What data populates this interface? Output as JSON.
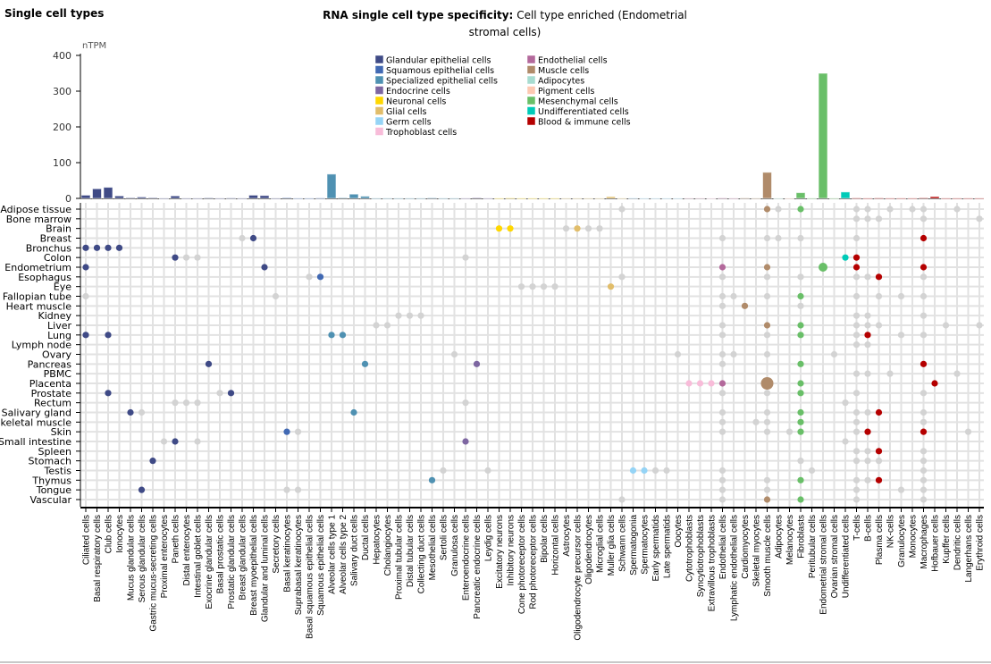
{
  "header": {
    "section_title": "Single cell types",
    "chart_title_bold": "RNA single cell type specificity:",
    "chart_title_rest": "Cell type enriched (Endometrial stromal cells)"
  },
  "chart_data": {
    "type": "bar",
    "ylabel": "nTPM",
    "ylim": [
      0,
      400
    ],
    "yticks": [
      0,
      100,
      200,
      300,
      400
    ],
    "legend_position": "right",
    "legend": [
      {
        "name": "Glandular epithelial cells",
        "color": "#3f4a86"
      },
      {
        "name": "Squamous epithelial cells",
        "color": "#4169b3"
      },
      {
        "name": "Specialized epithelial cells",
        "color": "#4f91b2"
      },
      {
        "name": "Endocrine cells",
        "color": "#7d66a1"
      },
      {
        "name": "Neuronal cells",
        "color": "#ffd700"
      },
      {
        "name": "Glial cells",
        "color": "#e1bd6a"
      },
      {
        "name": "Germ cells",
        "color": "#95d4f6"
      },
      {
        "name": "Trophoblast cells",
        "color": "#f8bcd9"
      },
      {
        "name": "Endothelial cells",
        "color": "#b3699b"
      },
      {
        "name": "Muscle cells",
        "color": "#b08b6a"
      },
      {
        "name": "Adipocytes",
        "color": "#a7dcd0"
      },
      {
        "name": "Pigment cells",
        "color": "#fdc9b2"
      },
      {
        "name": "Mesenchymal cells",
        "color": "#69bf68"
      },
      {
        "name": "Undifferentiated cells",
        "color": "#00cbb8"
      },
      {
        "name": "Blood & immune cells",
        "color": "#b50000"
      }
    ],
    "categories": [
      "Ciliated cells",
      "Basal respiratory cells",
      "Club cells",
      "Ionocytes",
      "Mucus glandular cells",
      "Serous glandular cells",
      "Gastric mucus-secreting cells",
      "Proximal enterocytes",
      "Paneth cells",
      "Distal enterocytes",
      "Intestinal goblet cells",
      "Exocrine glandular cells",
      "Basal prostatic cells",
      "Prostatic glandular cells",
      "Breast glandular cells",
      "Breast myoepithelial cells",
      "Glandular and luminal cells",
      "Secretory cells",
      "Basal keratinocytes",
      "Suprabasal keratinocytes",
      "Basal squamous epithelial cells",
      "Squamous epithelial cells",
      "Alveolar cells type 1",
      "Alveolar cells type 2",
      "Salivary duct cells",
      "Ductal cells",
      "Hepatocytes",
      "Cholangiocytes",
      "Proximal tubular cells",
      "Distal tubular cells",
      "Collecting duct cells",
      "Mesothelial cells",
      "Sertoli cells",
      "Granulosa cells",
      "Enteroendocrine cells",
      "Pancreatic endocrine cells",
      "Leydig cells",
      "Excitatory neurons",
      "Inhibitory neurons",
      "Cone photoreceptor cells",
      "Rod photoreceptor cells",
      "Bipolar cells",
      "Horizontal cells",
      "Astrocytes",
      "Oligodendrocyte precursor cells",
      "Oligodendrocytes",
      "Microglial cells",
      "Muller glia cells",
      "Schwann cells",
      "Spermatogonia",
      "Spermatocytes",
      "Early spermatids",
      "Late spermatids",
      "Oocytes",
      "Cytotrophoblasts",
      "Syncytiotrophoblasts",
      "Extravillous trophoblasts",
      "Endothelial cells",
      "Lymphatic endothelial cells",
      "Cardiomyocytes",
      "Skeletal myocytes",
      "Smooth muscle cells",
      "Adipocytes",
      "Melanocytes",
      "Fibroblasts",
      "Peritubular cells",
      "Endometrial stromal cells",
      "Ovarian stromal cells",
      "Undifferentiated cells",
      "T-cells",
      "B-cells",
      "Plasma cells",
      "NK-cells",
      "Granulocytes",
      "Monocytes",
      "Macrophages",
      "Hofbauer cells",
      "Kupffer cells",
      "Dendritic cells",
      "Langerhans cells",
      "Erythroid cells"
    ],
    "category_group": [
      0,
      0,
      0,
      0,
      0,
      0,
      0,
      0,
      0,
      0,
      0,
      0,
      0,
      0,
      0,
      0,
      0,
      0,
      1,
      1,
      1,
      1,
      2,
      2,
      2,
      2,
      2,
      2,
      2,
      2,
      2,
      2,
      2,
      2,
      3,
      3,
      3,
      4,
      4,
      4,
      4,
      4,
      4,
      5,
      5,
      5,
      5,
      5,
      5,
      6,
      6,
      6,
      6,
      6,
      7,
      7,
      7,
      8,
      8,
      9,
      9,
      9,
      10,
      11,
      12,
      12,
      12,
      12,
      13,
      14,
      14,
      14,
      14,
      14,
      14,
      14,
      14,
      14,
      14,
      14,
      14
    ],
    "values": [
      9,
      27,
      31,
      7,
      2,
      4,
      2,
      0.5,
      7,
      0.5,
      0.5,
      1.5,
      0.5,
      1,
      0.5,
      9,
      8,
      0.5,
      2,
      0.5,
      0.5,
      1,
      68,
      2,
      12,
      6,
      0.5,
      0.5,
      0.5,
      0.5,
      0.5,
      1.5,
      0.5,
      0.5,
      0.5,
      2,
      0.5,
      0.5,
      1,
      0.5,
      0.5,
      0.5,
      0.5,
      0.5,
      0.5,
      0.5,
      0.5,
      5,
      0.5,
      1,
      0.5,
      0.5,
      0.5,
      0.5,
      1,
      1,
      0.5,
      1,
      0.5,
      1,
      0.5,
      73,
      0.5,
      0.5,
      16,
      0.5,
      350,
      0.5,
      18,
      1,
      0.5,
      1,
      0.5,
      0.5,
      0.5,
      1.5,
      5,
      0.5,
      0.5,
      0.5,
      0.5
    ],
    "dot_matrix": {
      "tissues": [
        {
          "name": "Adipose tissue",
          "enriched": [
            62,
            65
          ],
          "other": [
            49,
            63,
            70,
            71,
            73,
            75,
            76,
            79
          ]
        },
        {
          "name": "Bone marrow",
          "enriched": [],
          "other": [
            70,
            71,
            72,
            76,
            81
          ]
        },
        {
          "name": "Brain",
          "enriched": [
            38,
            39,
            45
          ],
          "other": [
            44,
            46,
            47
          ]
        },
        {
          "name": "Breast",
          "enriched": [
            16,
            76
          ],
          "other": [
            15,
            58,
            62,
            63,
            65,
            70
          ]
        },
        {
          "name": "Bronchus",
          "enriched": [
            1,
            2,
            3,
            4
          ],
          "other": []
        },
        {
          "name": "Colon",
          "enriched": [
            9,
            69,
            70
          ],
          "other": [
            10,
            11,
            35
          ]
        },
        {
          "name": "Endometrium",
          "enriched": [
            1,
            17,
            58,
            62,
            67,
            70,
            76
          ],
          "other": [],
          "larger": [
            67
          ]
        },
        {
          "name": "Esophagus",
          "enriched": [
            22,
            72
          ],
          "other": [
            21,
            49,
            58,
            62,
            65,
            70,
            71,
            76
          ]
        },
        {
          "name": "Eye",
          "enriched": [
            48
          ],
          "other": [
            40,
            41,
            42,
            43
          ]
        },
        {
          "name": "Fallopian tube",
          "enriched": [
            65
          ],
          "other": [
            1,
            18,
            58,
            59,
            62,
            70,
            72,
            74,
            76
          ]
        },
        {
          "name": "Heart muscle",
          "enriched": [
            60
          ],
          "other": [
            58,
            65
          ]
        },
        {
          "name": "Kidney",
          "enriched": [],
          "other": [
            29,
            30,
            31,
            70,
            71,
            76
          ]
        },
        {
          "name": "Liver",
          "enriched": [
            62,
            65
          ],
          "other": [
            27,
            28,
            58,
            70,
            71,
            72,
            78,
            81
          ]
        },
        {
          "name": "Lung",
          "enriched": [
            1,
            3,
            23,
            24,
            65,
            71
          ],
          "other": [
            58,
            62,
            70,
            74,
            76
          ]
        },
        {
          "name": "Lymph node",
          "enriched": [],
          "other": [
            70,
            71
          ]
        },
        {
          "name": "Ovary",
          "enriched": [],
          "other": [
            34,
            54,
            58,
            59,
            62,
            68
          ]
        },
        {
          "name": "Pancreas",
          "enriched": [
            12,
            26,
            36,
            65,
            76
          ],
          "other": [
            58
          ]
        },
        {
          "name": "PBMC",
          "enriched": [],
          "other": [
            70,
            71,
            73,
            79
          ]
        },
        {
          "name": "Placenta",
          "enriched": [
            55,
            56,
            57,
            58,
            62,
            65,
            77
          ],
          "other": [],
          "largest": [
            62
          ]
        },
        {
          "name": "Prostate",
          "enriched": [
            3,
            14,
            65
          ],
          "other": [
            13,
            58,
            62,
            70,
            76
          ]
        },
        {
          "name": "Rectum",
          "enriched": [],
          "other": [
            9,
            10,
            11,
            35,
            69
          ]
        },
        {
          "name": "Salivary gland",
          "enriched": [
            5,
            25,
            65,
            72
          ],
          "other": [
            6,
            58,
            62,
            70,
            71,
            76
          ]
        },
        {
          "name": "Skeletal muscle",
          "enriched": [
            65
          ],
          "other": [
            58,
            61,
            62,
            70,
            76
          ]
        },
        {
          "name": "Skin",
          "enriched": [
            19,
            65,
            71,
            76
          ],
          "other": [
            20,
            58,
            62,
            64,
            70,
            80
          ]
        },
        {
          "name": "Small intestine",
          "enriched": [
            9,
            35
          ],
          "other": [
            8,
            11,
            69
          ]
        },
        {
          "name": "Spleen",
          "enriched": [
            72
          ],
          "other": [
            70,
            71,
            76
          ]
        },
        {
          "name": "Stomach",
          "enriched": [
            7
          ],
          "other": [
            65,
            70,
            71,
            72,
            76
          ]
        },
        {
          "name": "Testis",
          "enriched": [
            50,
            51
          ],
          "other": [
            33,
            37,
            52,
            53,
            58,
            66,
            76
          ]
        },
        {
          "name": "Thymus",
          "enriched": [
            32,
            65,
            72
          ],
          "other": [
            58,
            62,
            70,
            71,
            76
          ]
        },
        {
          "name": "Tongue",
          "enriched": [
            6
          ],
          "other": [
            19,
            20,
            58,
            62,
            70,
            74,
            76
          ]
        },
        {
          "name": "Vascular",
          "enriched": [
            62,
            65
          ],
          "other": [
            49,
            58,
            70,
            76
          ]
        }
      ],
      "other_color": "#d3d3d3",
      "grid_color": "#e2e2e2"
    }
  }
}
